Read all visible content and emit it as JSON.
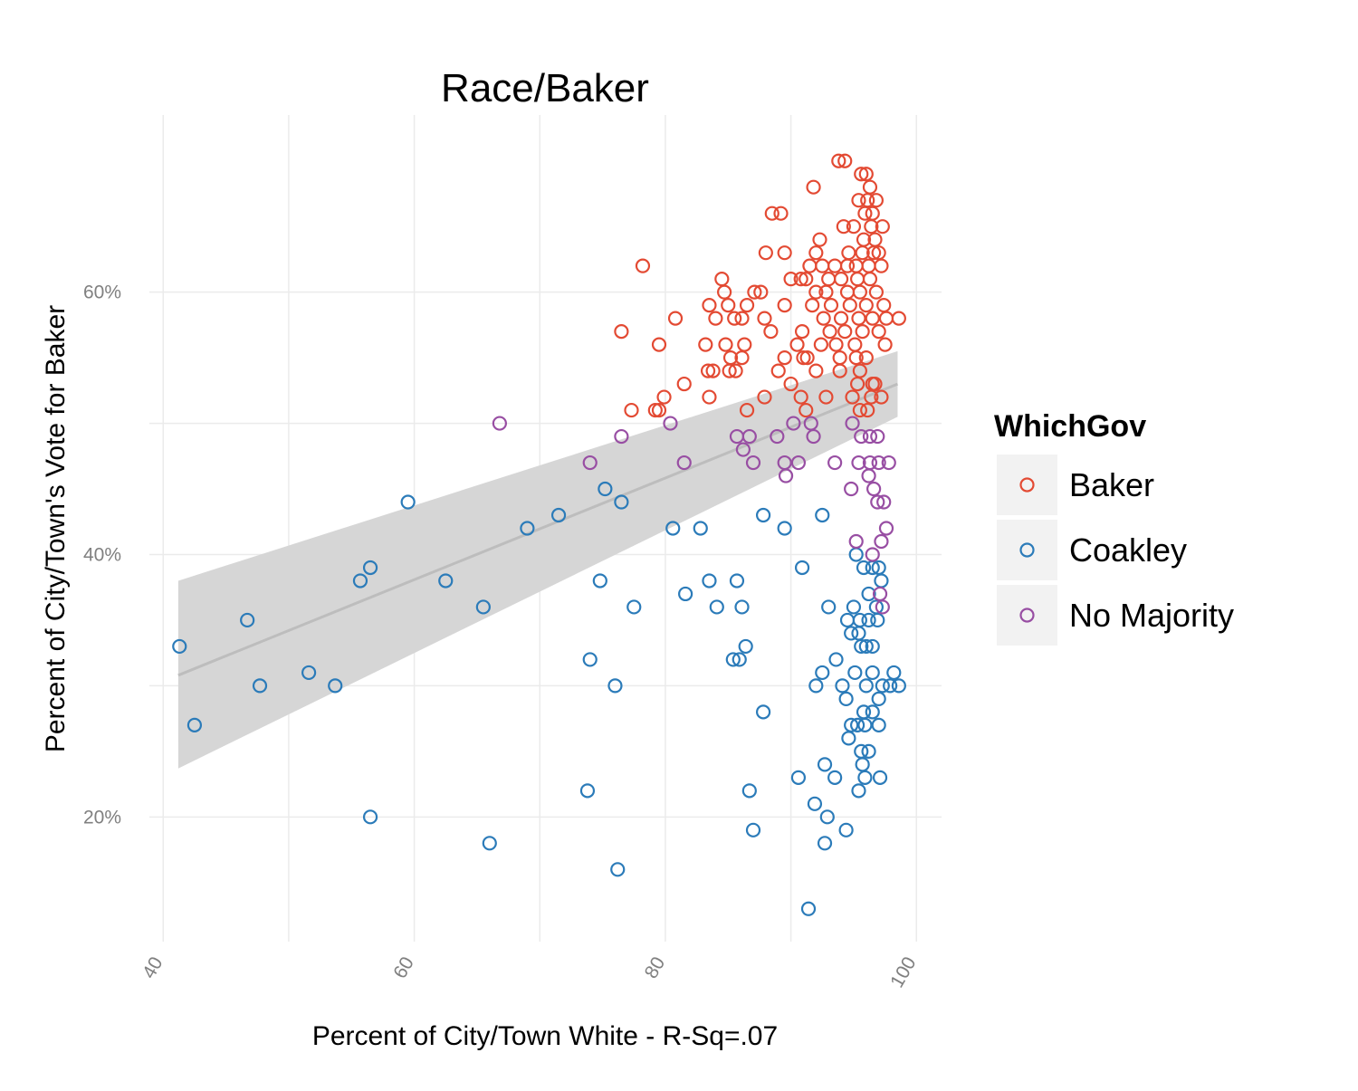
{
  "chart_data": {
    "type": "scatter",
    "title": "Race/Baker",
    "xlabel": "Percent of City/Town White - R-Sq=.07",
    "ylabel": "Percent of City/Town's Vote for Baker",
    "xlim": [
      38.9,
      102
    ],
    "ylim": [
      0.105,
      0.735
    ],
    "x_ticks": [
      40,
      60,
      80,
      100
    ],
    "x_tick_labels": [
      "40",
      "60",
      "80",
      "100"
    ],
    "y_ticks": [
      0.2,
      0.4,
      0.6
    ],
    "y_tick_labels": [
      "20%",
      "40%",
      "60%"
    ],
    "grid": true,
    "legend": {
      "title": "WhichGov",
      "position": "right",
      "entries": [
        "Baker",
        "Coakley",
        "No Majority"
      ]
    },
    "colors": {
      "Baker": "#e34a33",
      "Coakley": "#2b7bb9",
      "No Majority": "#984ea3",
      "smooth_line": "#bdbdbd",
      "smooth_band": "#d6d6d6",
      "grid": "#ebebeb"
    },
    "trend": {
      "method": "linear",
      "x": [
        41.2,
        98.5
      ],
      "y": [
        0.308,
        0.53
      ],
      "ci_lower": [
        0.237,
        0.505
      ],
      "ci_upper": [
        0.38,
        0.555
      ]
    },
    "series": [
      {
        "name": "Baker",
        "points": [
          [
            93.8,
            0.7
          ],
          [
            94.3,
            0.7
          ],
          [
            95.6,
            0.69
          ],
          [
            96.0,
            0.69
          ],
          [
            96.3,
            0.68
          ],
          [
            91.8,
            0.68
          ],
          [
            95.4,
            0.67
          ],
          [
            96.1,
            0.67
          ],
          [
            96.8,
            0.67
          ],
          [
            95.9,
            0.66
          ],
          [
            96.5,
            0.66
          ],
          [
            88.5,
            0.66
          ],
          [
            89.2,
            0.66
          ],
          [
            94.2,
            0.65
          ],
          [
            95.0,
            0.65
          ],
          [
            96.4,
            0.65
          ],
          [
            97.3,
            0.65
          ],
          [
            92.3,
            0.64
          ],
          [
            95.8,
            0.64
          ],
          [
            96.7,
            0.64
          ],
          [
            92.0,
            0.63
          ],
          [
            94.6,
            0.63
          ],
          [
            95.7,
            0.63
          ],
          [
            96.6,
            0.63
          ],
          [
            97.0,
            0.63
          ],
          [
            88.0,
            0.63
          ],
          [
            89.5,
            0.63
          ],
          [
            91.5,
            0.62
          ],
          [
            92.5,
            0.62
          ],
          [
            93.5,
            0.62
          ],
          [
            94.5,
            0.62
          ],
          [
            95.2,
            0.62
          ],
          [
            96.2,
            0.62
          ],
          [
            97.2,
            0.62
          ],
          [
            78.2,
            0.62
          ],
          [
            90.0,
            0.61
          ],
          [
            90.8,
            0.61
          ],
          [
            91.2,
            0.61
          ],
          [
            93.0,
            0.61
          ],
          [
            94.0,
            0.61
          ],
          [
            95.3,
            0.61
          ],
          [
            96.3,
            0.61
          ],
          [
            84.5,
            0.61
          ],
          [
            92.0,
            0.6
          ],
          [
            92.8,
            0.6
          ],
          [
            94.5,
            0.6
          ],
          [
            95.5,
            0.6
          ],
          [
            96.8,
            0.6
          ],
          [
            84.7,
            0.6
          ],
          [
            87.1,
            0.6
          ],
          [
            87.6,
            0.6
          ],
          [
            89.5,
            0.59
          ],
          [
            91.7,
            0.59
          ],
          [
            93.2,
            0.59
          ],
          [
            94.7,
            0.59
          ],
          [
            96.0,
            0.59
          ],
          [
            97.4,
            0.59
          ],
          [
            83.5,
            0.59
          ],
          [
            85.0,
            0.59
          ],
          [
            86.5,
            0.59
          ],
          [
            92.6,
            0.58
          ],
          [
            94.0,
            0.58
          ],
          [
            95.4,
            0.58
          ],
          [
            96.5,
            0.58
          ],
          [
            97.6,
            0.58
          ],
          [
            98.6,
            0.58
          ],
          [
            80.8,
            0.58
          ],
          [
            84.0,
            0.58
          ],
          [
            85.5,
            0.58
          ],
          [
            86.1,
            0.58
          ],
          [
            87.9,
            0.58
          ],
          [
            88.4,
            0.57
          ],
          [
            90.9,
            0.57
          ],
          [
            93.1,
            0.57
          ],
          [
            94.3,
            0.57
          ],
          [
            95.7,
            0.57
          ],
          [
            97.0,
            0.57
          ],
          [
            76.5,
            0.57
          ],
          [
            86.3,
            0.56
          ],
          [
            83.2,
            0.56
          ],
          [
            84.8,
            0.56
          ],
          [
            79.5,
            0.56
          ],
          [
            90.5,
            0.56
          ],
          [
            92.4,
            0.56
          ],
          [
            93.6,
            0.56
          ],
          [
            95.1,
            0.56
          ],
          [
            97.5,
            0.56
          ],
          [
            85.2,
            0.55
          ],
          [
            86.1,
            0.55
          ],
          [
            89.5,
            0.55
          ],
          [
            91.3,
            0.55
          ],
          [
            93.9,
            0.55
          ],
          [
            95.2,
            0.55
          ],
          [
            96.0,
            0.55
          ],
          [
            91.0,
            0.55
          ],
          [
            83.4,
            0.54
          ],
          [
            83.8,
            0.54
          ],
          [
            85.1,
            0.54
          ],
          [
            85.6,
            0.54
          ],
          [
            89.0,
            0.54
          ],
          [
            92.0,
            0.54
          ],
          [
            93.9,
            0.54
          ],
          [
            95.5,
            0.54
          ],
          [
            81.5,
            0.53
          ],
          [
            90.0,
            0.53
          ],
          [
            96.5,
            0.53
          ],
          [
            96.7,
            0.53
          ],
          [
            95.3,
            0.53
          ],
          [
            79.9,
            0.52
          ],
          [
            83.5,
            0.52
          ],
          [
            87.9,
            0.52
          ],
          [
            90.8,
            0.52
          ],
          [
            92.8,
            0.52
          ],
          [
            94.9,
            0.52
          ],
          [
            96.4,
            0.52
          ],
          [
            97.2,
            0.52
          ],
          [
            77.3,
            0.51
          ],
          [
            79.2,
            0.51
          ],
          [
            79.5,
            0.51
          ],
          [
            86.5,
            0.51
          ],
          [
            91.2,
            0.51
          ],
          [
            95.5,
            0.51
          ],
          [
            96.1,
            0.51
          ]
        ]
      },
      {
        "name": "Coakley",
        "points": [
          [
            59.5,
            0.44
          ],
          [
            76.5,
            0.44
          ],
          [
            75.2,
            0.45
          ],
          [
            69.0,
            0.42
          ],
          [
            71.5,
            0.43
          ],
          [
            80.6,
            0.42
          ],
          [
            82.8,
            0.42
          ],
          [
            87.8,
            0.43
          ],
          [
            89.5,
            0.42
          ],
          [
            92.5,
            0.43
          ],
          [
            56.5,
            0.39
          ],
          [
            55.7,
            0.38
          ],
          [
            62.5,
            0.38
          ],
          [
            74.8,
            0.38
          ],
          [
            83.5,
            0.38
          ],
          [
            85.7,
            0.38
          ],
          [
            90.9,
            0.39
          ],
          [
            46.7,
            0.35
          ],
          [
            65.5,
            0.36
          ],
          [
            77.5,
            0.36
          ],
          [
            81.6,
            0.37
          ],
          [
            84.1,
            0.36
          ],
          [
            86.1,
            0.36
          ],
          [
            93.0,
            0.36
          ],
          [
            41.3,
            0.33
          ],
          [
            51.6,
            0.31
          ],
          [
            53.7,
            0.3
          ],
          [
            47.7,
            0.3
          ],
          [
            42.5,
            0.27
          ],
          [
            74.0,
            0.32
          ],
          [
            76.0,
            0.3
          ],
          [
            85.4,
            0.32
          ],
          [
            85.9,
            0.32
          ],
          [
            86.4,
            0.33
          ],
          [
            87.8,
            0.28
          ],
          [
            92.5,
            0.31
          ],
          [
            93.6,
            0.32
          ],
          [
            92.0,
            0.3
          ],
          [
            94.1,
            0.3
          ],
          [
            94.4,
            0.29
          ],
          [
            95.2,
            0.4
          ],
          [
            95.8,
            0.39
          ],
          [
            96.5,
            0.39
          ],
          [
            97.0,
            0.39
          ],
          [
            97.2,
            0.38
          ],
          [
            95.0,
            0.36
          ],
          [
            96.2,
            0.37
          ],
          [
            96.8,
            0.36
          ],
          [
            94.5,
            0.35
          ],
          [
            95.5,
            0.35
          ],
          [
            96.2,
            0.35
          ],
          [
            96.9,
            0.35
          ],
          [
            94.8,
            0.34
          ],
          [
            95.6,
            0.33
          ],
          [
            96.0,
            0.33
          ],
          [
            96.5,
            0.33
          ],
          [
            95.4,
            0.34
          ],
          [
            94.8,
            0.27
          ],
          [
            95.3,
            0.27
          ],
          [
            95.9,
            0.27
          ],
          [
            94.6,
            0.26
          ],
          [
            95.8,
            0.28
          ],
          [
            96.5,
            0.28
          ],
          [
            97.0,
            0.29
          ],
          [
            97.3,
            0.3
          ],
          [
            97.9,
            0.3
          ],
          [
            98.6,
            0.3
          ],
          [
            98.2,
            0.31
          ],
          [
            97.0,
            0.27
          ],
          [
            95.1,
            0.31
          ],
          [
            96.0,
            0.3
          ],
          [
            96.5,
            0.31
          ],
          [
            95.6,
            0.25
          ],
          [
            96.2,
            0.25
          ],
          [
            95.7,
            0.24
          ],
          [
            92.7,
            0.24
          ],
          [
            93.5,
            0.23
          ],
          [
            90.6,
            0.23
          ],
          [
            95.9,
            0.23
          ],
          [
            97.1,
            0.23
          ],
          [
            91.9,
            0.21
          ],
          [
            92.9,
            0.2
          ],
          [
            94.4,
            0.19
          ],
          [
            95.4,
            0.22
          ],
          [
            86.7,
            0.22
          ],
          [
            73.8,
            0.22
          ],
          [
            56.5,
            0.2
          ],
          [
            66.0,
            0.18
          ],
          [
            76.2,
            0.16
          ],
          [
            87.0,
            0.19
          ],
          [
            92.7,
            0.18
          ],
          [
            91.4,
            0.13
          ]
        ]
      },
      {
        "name": "No Majority",
        "points": [
          [
            66.8,
            0.5
          ],
          [
            80.4,
            0.5
          ],
          [
            76.5,
            0.49
          ],
          [
            74.0,
            0.47
          ],
          [
            81.5,
            0.47
          ],
          [
            85.7,
            0.49
          ],
          [
            86.7,
            0.49
          ],
          [
            86.2,
            0.48
          ],
          [
            87.0,
            0.47
          ],
          [
            88.9,
            0.49
          ],
          [
            90.2,
            0.5
          ],
          [
            89.6,
            0.46
          ],
          [
            89.5,
            0.47
          ],
          [
            90.6,
            0.47
          ],
          [
            91.8,
            0.49
          ],
          [
            91.6,
            0.5
          ],
          [
            93.5,
            0.47
          ],
          [
            94.9,
            0.5
          ],
          [
            95.6,
            0.49
          ],
          [
            96.3,
            0.49
          ],
          [
            96.9,
            0.49
          ],
          [
            95.4,
            0.47
          ],
          [
            96.3,
            0.47
          ],
          [
            97.0,
            0.47
          ],
          [
            97.8,
            0.47
          ],
          [
            96.2,
            0.46
          ],
          [
            96.6,
            0.45
          ],
          [
            94.8,
            0.45
          ],
          [
            96.9,
            0.44
          ],
          [
            97.4,
            0.44
          ],
          [
            97.6,
            0.42
          ],
          [
            97.2,
            0.41
          ],
          [
            95.2,
            0.41
          ],
          [
            96.5,
            0.4
          ],
          [
            97.1,
            0.37
          ],
          [
            97.3,
            0.36
          ]
        ]
      }
    ]
  }
}
